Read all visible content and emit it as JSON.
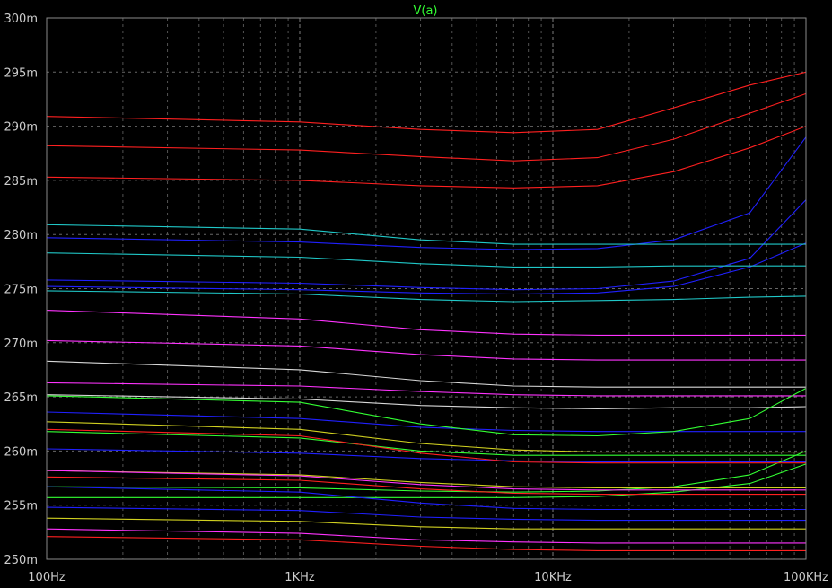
{
  "chart_data": {
    "type": "line",
    "title": "V(a)",
    "x_scale": "log",
    "x_range_hz": [
      100,
      100000
    ],
    "y_range_volts": [
      0.25,
      0.3
    ],
    "grid": true,
    "colors": {
      "background": "#000000",
      "grid": "#8a8a8a",
      "axis_text": "#cccccc",
      "title": "#33ff33"
    },
    "x_ticks": [
      {
        "value": 100,
        "label": "100Hz"
      },
      {
        "value": 1000,
        "label": "1KHz"
      },
      {
        "value": 10000,
        "label": "10KHz"
      },
      {
        "value": 100000,
        "label": "100KHz"
      }
    ],
    "y_ticks": [
      {
        "value": 0.3,
        "label": "300m"
      },
      {
        "value": 0.295,
        "label": "295m"
      },
      {
        "value": 0.29,
        "label": "290m"
      },
      {
        "value": 0.285,
        "label": "285m"
      },
      {
        "value": 0.28,
        "label": "280m"
      },
      {
        "value": 0.275,
        "label": "275m"
      },
      {
        "value": 0.27,
        "label": "270m"
      },
      {
        "value": 0.265,
        "label": "265m"
      },
      {
        "value": 0.26,
        "label": "260m"
      },
      {
        "value": 0.255,
        "label": "255m"
      },
      {
        "value": 0.25,
        "label": "250m"
      }
    ],
    "series": [
      {
        "color": "#ff2020",
        "points": [
          [
            100,
            0.2909
          ],
          [
            1000,
            0.2904
          ],
          [
            3000,
            0.2897
          ],
          [
            7000,
            0.2894
          ],
          [
            15000,
            0.2897
          ],
          [
            30000,
            0.2917
          ],
          [
            60000,
            0.2938
          ],
          [
            100000,
            0.295
          ]
        ]
      },
      {
        "color": "#ff2020",
        "points": [
          [
            100,
            0.2882
          ],
          [
            1000,
            0.2878
          ],
          [
            3000,
            0.2872
          ],
          [
            7000,
            0.2868
          ],
          [
            15000,
            0.2871
          ],
          [
            30000,
            0.2888
          ],
          [
            60000,
            0.2912
          ],
          [
            100000,
            0.293
          ]
        ]
      },
      {
        "color": "#ff2020",
        "points": [
          [
            100,
            0.2853
          ],
          [
            1000,
            0.285
          ],
          [
            3000,
            0.2845
          ],
          [
            7000,
            0.2843
          ],
          [
            15000,
            0.2845
          ],
          [
            30000,
            0.2858
          ],
          [
            60000,
            0.288
          ],
          [
            100000,
            0.29
          ]
        ]
      },
      {
        "color": "#2020ff",
        "points": [
          [
            100,
            0.2797
          ],
          [
            1000,
            0.2793
          ],
          [
            3000,
            0.2788
          ],
          [
            7000,
            0.2786
          ],
          [
            15000,
            0.2787
          ],
          [
            30000,
            0.2795
          ],
          [
            60000,
            0.282
          ],
          [
            100000,
            0.289
          ]
        ]
      },
      {
        "color": "#2020ff",
        "points": [
          [
            100,
            0.2758
          ],
          [
            1000,
            0.2755
          ],
          [
            3000,
            0.2751
          ],
          [
            7000,
            0.2749
          ],
          [
            15000,
            0.275
          ],
          [
            30000,
            0.2757
          ],
          [
            60000,
            0.2778
          ],
          [
            100000,
            0.2832
          ]
        ]
      },
      {
        "color": "#2020ff",
        "points": [
          [
            100,
            0.2752
          ],
          [
            1000,
            0.2749
          ],
          [
            3000,
            0.2746
          ],
          [
            7000,
            0.2745
          ],
          [
            15000,
            0.2746
          ],
          [
            30000,
            0.2752
          ],
          [
            60000,
            0.277
          ],
          [
            100000,
            0.2792
          ]
        ]
      },
      {
        "color": "#20c8c8",
        "points": [
          [
            100,
            0.2809
          ],
          [
            1000,
            0.2805
          ],
          [
            3000,
            0.2795
          ],
          [
            7000,
            0.2791
          ],
          [
            15000,
            0.2791
          ],
          [
            30000,
            0.2791
          ],
          [
            60000,
            0.2791
          ],
          [
            100000,
            0.2791
          ]
        ]
      },
      {
        "color": "#20c8c8",
        "points": [
          [
            100,
            0.2783
          ],
          [
            1000,
            0.2779
          ],
          [
            3000,
            0.2773
          ],
          [
            7000,
            0.277
          ],
          [
            15000,
            0.277
          ],
          [
            30000,
            0.2771
          ],
          [
            60000,
            0.2771
          ],
          [
            100000,
            0.2771
          ]
        ]
      },
      {
        "color": "#20c8c8",
        "points": [
          [
            100,
            0.2748
          ],
          [
            1000,
            0.2745
          ],
          [
            3000,
            0.274
          ],
          [
            7000,
            0.2738
          ],
          [
            15000,
            0.2739
          ],
          [
            30000,
            0.274
          ],
          [
            60000,
            0.2742
          ],
          [
            100000,
            0.2743
          ]
        ]
      },
      {
        "color": "#ff33ff",
        "points": [
          [
            100,
            0.273
          ],
          [
            1000,
            0.2722
          ],
          [
            3000,
            0.2712
          ],
          [
            7000,
            0.2708
          ],
          [
            15000,
            0.2707
          ],
          [
            30000,
            0.2707
          ],
          [
            60000,
            0.2707
          ],
          [
            100000,
            0.2707
          ]
        ]
      },
      {
        "color": "#ff33ff",
        "points": [
          [
            100,
            0.2702
          ],
          [
            1000,
            0.2697
          ],
          [
            3000,
            0.2689
          ],
          [
            7000,
            0.2685
          ],
          [
            15000,
            0.2684
          ],
          [
            30000,
            0.2684
          ],
          [
            60000,
            0.2684
          ],
          [
            100000,
            0.2684
          ]
        ]
      },
      {
        "color": "#ff33ff",
        "points": [
          [
            100,
            0.2663
          ],
          [
            1000,
            0.266
          ],
          [
            3000,
            0.2655
          ],
          [
            7000,
            0.2652
          ],
          [
            15000,
            0.2651
          ],
          [
            30000,
            0.2651
          ],
          [
            60000,
            0.2651
          ],
          [
            100000,
            0.2651
          ]
        ]
      },
      {
        "color": "#d8d8d8",
        "points": [
          [
            100,
            0.2683
          ],
          [
            1000,
            0.2675
          ],
          [
            3000,
            0.2665
          ],
          [
            7000,
            0.266
          ],
          [
            15000,
            0.2659
          ],
          [
            30000,
            0.2659
          ],
          [
            60000,
            0.2659
          ],
          [
            100000,
            0.2659
          ]
        ]
      },
      {
        "color": "#d8d8d8",
        "points": [
          [
            100,
            0.2652
          ],
          [
            1000,
            0.2648
          ],
          [
            3000,
            0.2642
          ],
          [
            7000,
            0.264
          ],
          [
            15000,
            0.2639
          ],
          [
            30000,
            0.264
          ],
          [
            60000,
            0.264
          ],
          [
            100000,
            0.2641
          ]
        ]
      },
      {
        "color": "#2020ff",
        "points": [
          [
            100,
            0.2636
          ],
          [
            1000,
            0.263
          ],
          [
            3000,
            0.2622
          ],
          [
            7000,
            0.2619
          ],
          [
            15000,
            0.2618
          ],
          [
            30000,
            0.2618
          ],
          [
            60000,
            0.2618
          ],
          [
            100000,
            0.2618
          ]
        ]
      },
      {
        "color": "#2020ff",
        "points": [
          [
            100,
            0.2602
          ],
          [
            1000,
            0.2598
          ],
          [
            3000,
            0.2593
          ],
          [
            7000,
            0.2591
          ],
          [
            15000,
            0.259
          ],
          [
            30000,
            0.259
          ],
          [
            60000,
            0.259
          ],
          [
            100000,
            0.259
          ]
        ]
      },
      {
        "color": "#33ff33",
        "points": [
          [
            100,
            0.2651
          ],
          [
            1000,
            0.2645
          ],
          [
            3000,
            0.2625
          ],
          [
            7000,
            0.2615
          ],
          [
            15000,
            0.2614
          ],
          [
            30000,
            0.2618
          ],
          [
            60000,
            0.263
          ],
          [
            100000,
            0.2658
          ]
        ]
      },
      {
        "color": "#33ff33",
        "points": [
          [
            100,
            0.2618
          ],
          [
            1000,
            0.2612
          ],
          [
            3000,
            0.26
          ],
          [
            7000,
            0.2596
          ],
          [
            15000,
            0.2596
          ],
          [
            30000,
            0.2596
          ],
          [
            60000,
            0.2596
          ],
          [
            100000,
            0.2596
          ]
        ]
      },
      {
        "color": "#33ff33",
        "points": [
          [
            100,
            0.2567
          ],
          [
            1000,
            0.2566
          ],
          [
            3000,
            0.2563
          ],
          [
            7000,
            0.2562
          ],
          [
            15000,
            0.2563
          ],
          [
            30000,
            0.2567
          ],
          [
            60000,
            0.2578
          ],
          [
            100000,
            0.26
          ]
        ]
      },
      {
        "color": "#33ff33",
        "points": [
          [
            100,
            0.2557
          ],
          [
            1000,
            0.2557
          ],
          [
            3000,
            0.2557
          ],
          [
            7000,
            0.2557
          ],
          [
            15000,
            0.2558
          ],
          [
            30000,
            0.2562
          ],
          [
            60000,
            0.257
          ],
          [
            100000,
            0.2588
          ]
        ]
      },
      {
        "color": "#d0d020",
        "points": [
          [
            100,
            0.2627
          ],
          [
            1000,
            0.262
          ],
          [
            3000,
            0.2607
          ],
          [
            7000,
            0.2601
          ],
          [
            15000,
            0.2599
          ],
          [
            30000,
            0.2599
          ],
          [
            60000,
            0.2599
          ],
          [
            100000,
            0.2599
          ]
        ]
      },
      {
        "color": "#d0d020",
        "points": [
          [
            100,
            0.2582
          ],
          [
            1000,
            0.2578
          ],
          [
            3000,
            0.2571
          ],
          [
            7000,
            0.2567
          ],
          [
            15000,
            0.2566
          ],
          [
            30000,
            0.2566
          ],
          [
            60000,
            0.2566
          ],
          [
            100000,
            0.2566
          ]
        ]
      },
      {
        "color": "#d0d020",
        "points": [
          [
            100,
            0.2538
          ],
          [
            1000,
            0.2535
          ],
          [
            3000,
            0.253
          ],
          [
            7000,
            0.2528
          ],
          [
            15000,
            0.2528
          ],
          [
            30000,
            0.2528
          ],
          [
            60000,
            0.2528
          ],
          [
            100000,
            0.2528
          ]
        ]
      },
      {
        "color": "#ff2020",
        "points": [
          [
            100,
            0.262
          ],
          [
            1000,
            0.2614
          ],
          [
            3000,
            0.2598
          ],
          [
            7000,
            0.259
          ],
          [
            15000,
            0.2589
          ],
          [
            30000,
            0.2589
          ],
          [
            60000,
            0.2589
          ],
          [
            100000,
            0.2589
          ]
        ]
      },
      {
        "color": "#ff2020",
        "points": [
          [
            100,
            0.2576
          ],
          [
            1000,
            0.2573
          ],
          [
            3000,
            0.2565
          ],
          [
            7000,
            0.2561
          ],
          [
            15000,
            0.256
          ],
          [
            30000,
            0.256
          ],
          [
            60000,
            0.256
          ],
          [
            100000,
            0.256
          ]
        ]
      },
      {
        "color": "#ff2020",
        "points": [
          [
            100,
            0.2521
          ],
          [
            1000,
            0.2518
          ],
          [
            3000,
            0.2512
          ],
          [
            7000,
            0.2509
          ],
          [
            15000,
            0.2508
          ],
          [
            30000,
            0.2508
          ],
          [
            60000,
            0.2508
          ],
          [
            100000,
            0.2508
          ]
        ]
      },
      {
        "color": "#ff33ff",
        "points": [
          [
            100,
            0.2582
          ],
          [
            1000,
            0.2577
          ],
          [
            3000,
            0.2569
          ],
          [
            7000,
            0.2565
          ],
          [
            15000,
            0.2564
          ],
          [
            30000,
            0.2564
          ],
          [
            60000,
            0.2564
          ],
          [
            100000,
            0.2564
          ]
        ]
      },
      {
        "color": "#ff33ff",
        "points": [
          [
            100,
            0.2528
          ],
          [
            1000,
            0.2524
          ],
          [
            3000,
            0.2518
          ],
          [
            7000,
            0.2516
          ],
          [
            15000,
            0.2515
          ],
          [
            30000,
            0.2515
          ],
          [
            60000,
            0.2515
          ],
          [
            100000,
            0.2515
          ]
        ]
      },
      {
        "color": "#2020ff",
        "points": [
          [
            100,
            0.2567
          ],
          [
            1000,
            0.2562
          ],
          [
            3000,
            0.2552
          ],
          [
            7000,
            0.2547
          ],
          [
            15000,
            0.2546
          ],
          [
            30000,
            0.2546
          ],
          [
            60000,
            0.2546
          ],
          [
            100000,
            0.2546
          ]
        ]
      },
      {
        "color": "#2020ff",
        "points": [
          [
            100,
            0.2548
          ],
          [
            1000,
            0.2545
          ],
          [
            3000,
            0.2539
          ],
          [
            7000,
            0.2537
          ],
          [
            15000,
            0.2536
          ],
          [
            30000,
            0.2536
          ],
          [
            60000,
            0.2536
          ],
          [
            100000,
            0.2536
          ]
        ]
      }
    ]
  }
}
